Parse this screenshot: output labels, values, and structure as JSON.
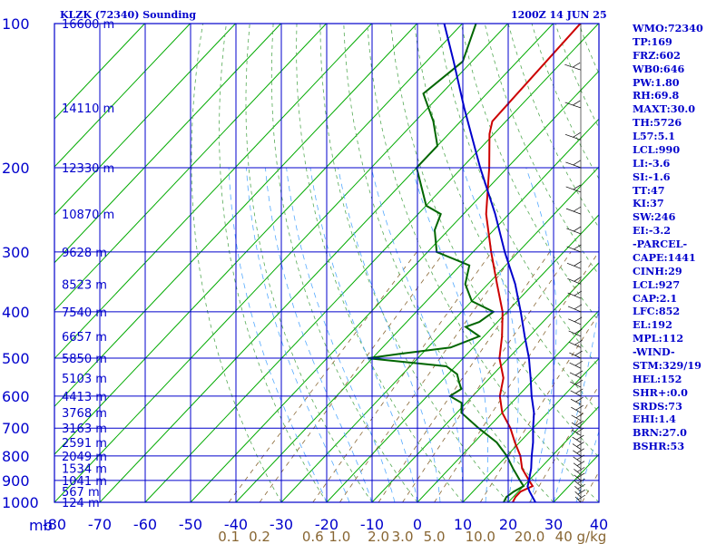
{
  "chart_data": {
    "type": "skew-t",
    "title": "KLZK (72340) Sounding",
    "valid_time": "1200Z 14 JUN 25",
    "y_axis": {
      "label": "mb",
      "scale": "log",
      "range": [
        1000,
        100
      ],
      "ticks": [
        100,
        200,
        300,
        400,
        500,
        600,
        700,
        800,
        900,
        1000
      ]
    },
    "x_axis": {
      "label": "",
      "units": "C",
      "range": [
        -80,
        40
      ],
      "ticks": [
        -80,
        -70,
        -60,
        -50,
        -40,
        -30,
        -20,
        -10,
        0,
        10,
        20,
        30,
        40
      ]
    },
    "mixing_ratio_labels": [
      "0.1",
      "0.2",
      "0.6",
      "1.0",
      "2.0",
      "3.0",
      "5.0",
      "10.0",
      "20.0",
      "40 g/kg"
    ],
    "height_labels": [
      {
        "p": 100,
        "text": "16600 m"
      },
      {
        "p": 150,
        "text": "14110 m"
      },
      {
        "p": 200,
        "text": "12330 m"
      },
      {
        "p": 250,
        "text": "10870 m"
      },
      {
        "p": 300,
        "text": "9628 m"
      },
      {
        "p": 350,
        "text": "8523 m"
      },
      {
        "p": 400,
        "text": "7540 m"
      },
      {
        "p": 450,
        "text": "6657 m"
      },
      {
        "p": 500,
        "text": "5850 m"
      },
      {
        "p": 550,
        "text": "5103 m"
      },
      {
        "p": 600,
        "text": "4413 m"
      },
      {
        "p": 650,
        "text": "3768 m"
      },
      {
        "p": 700,
        "text": "3163 m"
      },
      {
        "p": 750,
        "text": "2591 m"
      },
      {
        "p": 800,
        "text": "2049 m"
      },
      {
        "p": 850,
        "text": "1534 m"
      },
      {
        "p": 900,
        "text": "1041 m"
      },
      {
        "p": 950,
        "text": "567 m"
      },
      {
        "p": 1000,
        "text": "124 m"
      }
    ],
    "series": [
      {
        "name": "",
        "color": "#cc0000",
        "points": [
          [
            1000,
            21
          ],
          [
            975,
            20.5
          ],
          [
            950,
            20.5
          ],
          [
            925,
            22
          ],
          [
            900,
            20
          ],
          [
            850,
            16
          ],
          [
            800,
            13
          ],
          [
            750,
            9
          ],
          [
            700,
            5
          ],
          [
            650,
            0
          ],
          [
            600,
            -4
          ],
          [
            550,
            -7
          ],
          [
            500,
            -12
          ],
          [
            450,
            -16
          ],
          [
            400,
            -21
          ],
          [
            350,
            -28
          ],
          [
            300,
            -36
          ],
          [
            250,
            -45
          ],
          [
            200,
            -54
          ],
          [
            170,
            -61
          ],
          [
            160,
            -63
          ],
          [
            100,
            -64
          ]
        ]
      },
      {
        "name": "",
        "color": "#006600",
        "points": [
          [
            1000,
            19
          ],
          [
            975,
            18.5
          ],
          [
            950,
            19
          ],
          [
            925,
            20
          ],
          [
            900,
            18
          ],
          [
            850,
            14
          ],
          [
            800,
            10
          ],
          [
            750,
            5
          ],
          [
            700,
            -2
          ],
          [
            650,
            -9
          ],
          [
            620,
            -11
          ],
          [
            600,
            -15
          ],
          [
            580,
            -14
          ],
          [
            560,
            -16
          ],
          [
            540,
            -18
          ],
          [
            520,
            -22
          ],
          [
            500,
            -41
          ],
          [
            490,
            -35
          ],
          [
            475,
            -25
          ],
          [
            450,
            -21
          ],
          [
            430,
            -26
          ],
          [
            420,
            -24
          ],
          [
            400,
            -23
          ],
          [
            380,
            -30
          ],
          [
            350,
            -35
          ],
          [
            320,
            -38
          ],
          [
            300,
            -48
          ],
          [
            270,
            -53
          ],
          [
            250,
            -55
          ],
          [
            240,
            -60
          ],
          [
            200,
            -70
          ],
          [
            180,
            -70
          ],
          [
            160,
            -76
          ],
          [
            140,
            -84
          ],
          [
            120,
            -82
          ],
          [
            100,
            -87
          ]
        ]
      },
      {
        "name": "",
        "color": "#0000cc",
        "points": [
          [
            1000,
            26
          ],
          [
            950,
            22.5
          ],
          [
            927,
            21
          ],
          [
            900,
            20
          ],
          [
            850,
            18
          ],
          [
            800,
            15.5
          ],
          [
            750,
            13
          ],
          [
            700,
            10
          ],
          [
            650,
            7
          ],
          [
            600,
            3
          ],
          [
            550,
            -1
          ],
          [
            500,
            -5.5
          ],
          [
            450,
            -11
          ],
          [
            400,
            -17
          ],
          [
            350,
            -24
          ],
          [
            300,
            -33
          ],
          [
            250,
            -43
          ],
          [
            200,
            -56
          ],
          [
            150,
            -72
          ],
          [
            120,
            -84
          ],
          [
            100,
            -94
          ]
        ]
      }
    ],
    "wind_barbs_right_side": true
  },
  "indices": [
    "WMO:72340",
    "TP:169",
    "FRZ:602",
    "WB0:646",
    "PW:1.80",
    "RH:69.8",
    "MAXT:30.0",
    "TH:5726",
    "L57:5.1",
    "LCL:990",
    "LI:-3.6",
    "SI:-1.6",
    "TT:47",
    "KI:37",
    "SW:246",
    "EI:-3.2",
    "-PARCEL-",
    "CAPE:1441",
    "CINH:29",
    "LCL:927",
    "CAP:2.1",
    "LFC:852",
    "EL:192",
    "MPL:112",
    "-WIND-",
    "STM:329/19",
    "HEL:152",
    "SHR+:0.0",
    "SRDS:73",
    "EHI:1.4",
    "BRN:27.0",
    "BSHR:53"
  ]
}
